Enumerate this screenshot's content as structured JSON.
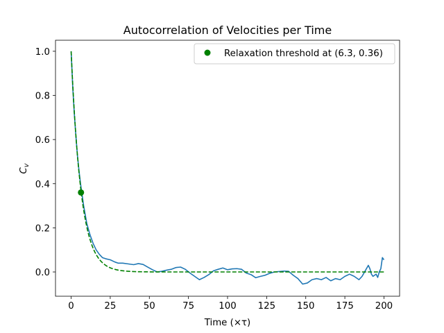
{
  "chart_data": {
    "type": "line",
    "title": "Autocorrelation of Velocities per Time",
    "xlabel": "Time (×τ)",
    "ylabel_main": "C",
    "ylabel_sub": "v",
    "xlim": [
      -10,
      210
    ],
    "ylim": [
      -0.11,
      1.05
    ],
    "xticks": [
      0,
      25,
      50,
      75,
      100,
      125,
      150,
      175,
      200
    ],
    "yticks": [
      0.0,
      0.2,
      0.4,
      0.6,
      0.8,
      1.0
    ],
    "ytick_labels": [
      "0.0",
      "0.2",
      "0.4",
      "0.6",
      "0.8",
      "1.0"
    ],
    "grid": false,
    "legend_position": "top-right",
    "series": [
      {
        "kind": "line",
        "color": "#1f77b4",
        "style": "solid",
        "x": [
          0,
          1,
          2,
          3,
          4,
          5,
          6,
          7,
          8,
          9,
          10,
          12,
          14,
          16,
          18,
          20,
          22,
          25,
          28,
          30,
          33,
          36,
          40,
          43,
          46,
          49,
          52,
          55,
          58,
          61,
          64,
          67,
          70,
          73,
          76,
          79,
          82,
          85,
          88,
          91,
          94,
          97,
          100,
          103,
          106,
          109,
          112,
          115,
          118,
          121,
          124,
          127,
          130,
          133,
          136,
          139,
          142,
          145,
          148,
          151,
          154,
          157,
          160,
          163,
          166,
          169,
          172,
          175,
          178,
          181,
          184,
          186,
          188,
          190,
          191,
          192,
          193,
          194,
          195,
          196,
          197,
          198,
          199,
          200
        ],
        "y": [
          1.0,
          0.84,
          0.72,
          0.62,
          0.53,
          0.46,
          0.4,
          0.35,
          0.3,
          0.26,
          0.22,
          0.17,
          0.13,
          0.1,
          0.08,
          0.065,
          0.06,
          0.055,
          0.045,
          0.04,
          0.04,
          0.037,
          0.033,
          0.038,
          0.034,
          0.022,
          0.01,
          0.0,
          0.003,
          0.008,
          0.012,
          0.02,
          0.022,
          0.012,
          -0.005,
          -0.02,
          -0.035,
          -0.025,
          -0.012,
          0.005,
          0.012,
          0.018,
          0.01,
          0.014,
          0.015,
          0.012,
          -0.005,
          -0.012,
          -0.026,
          -0.02,
          -0.015,
          -0.006,
          0.0,
          0.002,
          0.004,
          0.003,
          -0.015,
          -0.03,
          -0.055,
          -0.05,
          -0.035,
          -0.03,
          -0.035,
          -0.025,
          -0.04,
          -0.03,
          -0.035,
          -0.02,
          -0.01,
          -0.02,
          -0.035,
          -0.02,
          0.005,
          0.03,
          0.015,
          -0.01,
          -0.02,
          -0.015,
          -0.01,
          -0.025,
          0.0,
          0.015,
          0.065,
          0.055
        ]
      },
      {
        "kind": "line",
        "color": "#008000",
        "style": "dashed",
        "formula": "exp(-x/6.3)",
        "x_range": [
          0,
          200
        ]
      },
      {
        "kind": "point",
        "name": "Relaxation threshold at (6.3, 0.36)",
        "color": "#008000",
        "x": [
          6.3
        ],
        "y": [
          0.36
        ]
      }
    ]
  }
}
